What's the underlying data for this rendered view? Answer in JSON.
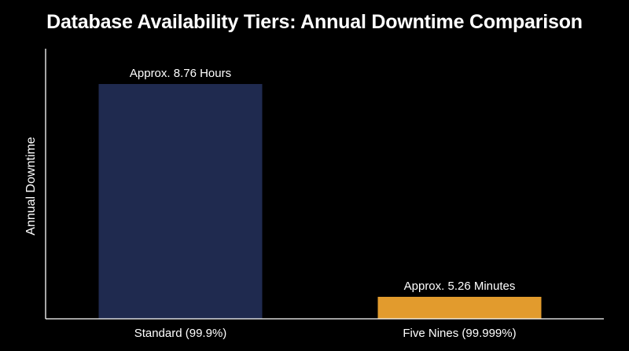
{
  "chart_data": {
    "type": "bar",
    "title": "Database Availability Tiers: Annual Downtime Comparison",
    "xlabel": "",
    "ylabel": "Annual Downtime",
    "categories": [
      "Standard (99.9%)",
      "Five Nines (99.999%)"
    ],
    "values": [
      525.6,
      5.26
    ],
    "value_unit": "minutes",
    "data_labels": [
      "Approx. 8.76 Hours",
      "Approx. 5.26 Minutes"
    ],
    "colors": [
      "#1f2a4f",
      "#e29b2d"
    ],
    "grid": false,
    "y_ticks_shown": false
  }
}
